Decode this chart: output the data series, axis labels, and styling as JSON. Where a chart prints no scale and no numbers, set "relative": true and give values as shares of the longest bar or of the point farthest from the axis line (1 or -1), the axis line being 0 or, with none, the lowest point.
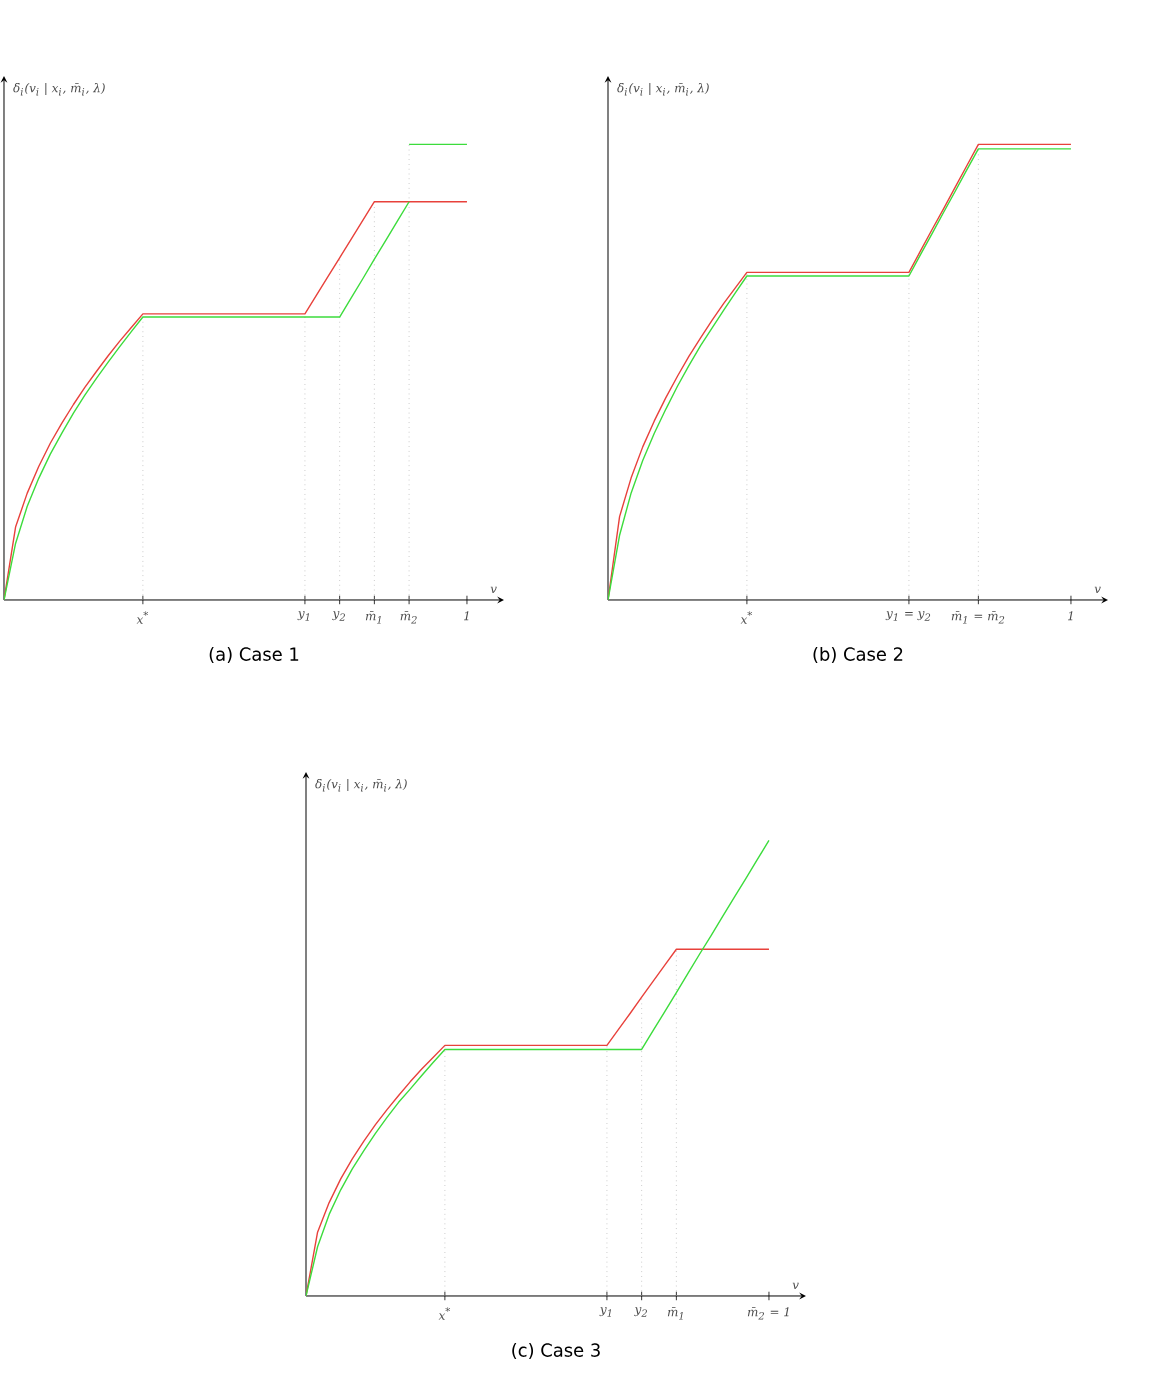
{
  "chart_data": [
    {
      "type": "line",
      "title": "(a) Case 1",
      "xlabel": "v",
      "ylabel": "δ$_{i}$(v$_{i}$ | x$_{i}$, m̄$_{i}$, λ)",
      "relative": true,
      "categories": [
        null,
        null,
        null,
        null,
        null,
        null,
        null,
        null,
        null,
        null,
        null,
        null,
        "x$^{*}$",
        null,
        null,
        null,
        null,
        null,
        null,
        null,
        null,
        null,
        null,
        null,
        null,
        null,
        "y$_{1}$",
        null,
        null,
        "y$_{2}$",
        null,
        null,
        "m̄$_{1}$",
        null,
        null,
        "m̄$_{2}$",
        null,
        null,
        null,
        null,
        "1"
      ],
      "ref_lines": [
        {
          "axis": "x",
          "value": "x$^{*}$",
          "color": "#b0b0b0",
          "line_style": "dotted"
        },
        {
          "axis": "x",
          "value": "y$_{1}$",
          "color": "#b0b0b0",
          "line_style": "dotted"
        },
        {
          "axis": "x",
          "value": "y$_{2}$",
          "color": "#b0b0b0",
          "line_style": "dotted"
        },
        {
          "axis": "x",
          "value": "m̄$_{1}$",
          "color": "#b0b0b0",
          "line_style": "dotted"
        },
        {
          "axis": "x",
          "value": "m̄$_{2}$",
          "color": "#b0b0b0",
          "line_style": "dotted"
        }
      ],
      "series": [
        {
          "color": "#e8413b",
          "values": [
            0,
            0.16,
            0.234,
            0.293,
            0.344,
            0.388,
            0.429,
            0.467,
            0.502,
            0.536,
            0.568,
            0.598,
            0.628,
            0.628,
            0.628,
            0.628,
            0.628,
            0.628,
            0.628,
            0.628,
            0.628,
            0.628,
            0.628,
            0.628,
            0.628,
            0.628,
            0.628,
            0.669,
            0.71,
            0.751,
            0.792,
            0.833,
            0.874,
            0.874,
            0.874,
            0.874,
            0.874,
            0.874,
            0.874,
            0.874,
            0.874
          ]
        },
        {
          "color": "#3cdc3c",
          "values": [
            0,
            0.124,
            0.205,
            0.267,
            0.32,
            0.366,
            0.41,
            0.45,
            0.487,
            0.522,
            0.556,
            0.589,
            0.621,
            0.621,
            0.621,
            0.621,
            0.621,
            0.621,
            0.621,
            0.621,
            0.621,
            0.621,
            0.621,
            0.621,
            0.621,
            0.621,
            0.621,
            0.621,
            0.621,
            0.621,
            0.663,
            0.705,
            0.748,
            0.79,
            0.832,
            0.874,
            null,
            null,
            null,
            null,
            null
          ]
        },
        {
          "color": "#3cdc3c",
          "values": [
            null,
            null,
            null,
            null,
            null,
            null,
            null,
            null,
            null,
            null,
            null,
            null,
            null,
            null,
            null,
            null,
            null,
            null,
            null,
            null,
            null,
            null,
            null,
            null,
            null,
            null,
            null,
            null,
            null,
            null,
            null,
            null,
            null,
            null,
            null,
            1,
            1,
            1,
            1,
            1,
            1
          ]
        }
      ]
    },
    {
      "type": "line",
      "title": "(b) Case 2",
      "xlabel": "v",
      "ylabel": "δ$_{i}$(v$_{i}$ | x$_{i}$, m̄$_{i}$, λ)",
      "relative": true,
      "categories": [
        null,
        null,
        null,
        null,
        null,
        null,
        null,
        null,
        null,
        null,
        null,
        null,
        "x$^{*}$",
        null,
        null,
        null,
        null,
        null,
        null,
        null,
        null,
        null,
        null,
        null,
        null,
        null,
        "y$_{1}$ = y$_{2}$",
        null,
        null,
        null,
        null,
        null,
        "m̄$_{1}$ = m̄$_{2}$",
        null,
        null,
        null,
        null,
        null,
        null,
        null,
        "1"
      ],
      "ref_lines": [
        {
          "axis": "x",
          "value": "x$^{*}$",
          "color": "#b0b0b0",
          "line_style": "dotted"
        },
        {
          "axis": "x",
          "value": "y$_{1}$ = y$_{2}$",
          "color": "#b0b0b0",
          "line_style": "dotted"
        },
        {
          "axis": "x",
          "value": "m̄$_{1}$ = m̄$_{2}$",
          "color": "#b0b0b0",
          "line_style": "dotted"
        }
      ],
      "series": [
        {
          "color": "#e8413b",
          "values": [
            0,
            0.183,
            0.268,
            0.336,
            0.393,
            0.444,
            0.491,
            0.535,
            0.575,
            0.614,
            0.651,
            0.685,
            0.719,
            0.719,
            0.719,
            0.719,
            0.719,
            0.719,
            0.719,
            0.719,
            0.719,
            0.719,
            0.719,
            0.719,
            0.719,
            0.719,
            0.719,
            0.766,
            0.813,
            0.859,
            0.906,
            0.953,
            1,
            1,
            1,
            1,
            1,
            1,
            1,
            1,
            1
          ]
        },
        {
          "color": "#3cdc3c",
          "values": [
            0,
            0.142,
            0.235,
            0.306,
            0.366,
            0.419,
            0.469,
            0.515,
            0.558,
            0.597,
            0.636,
            0.674,
            0.711,
            0.711,
            0.711,
            0.711,
            0.711,
            0.711,
            0.711,
            0.711,
            0.711,
            0.711,
            0.711,
            0.711,
            0.711,
            0.711,
            0.711,
            0.758,
            0.804,
            0.851,
            0.897,
            0.944,
            0.99,
            0.99,
            0.99,
            0.99,
            0.99,
            0.99,
            0.99,
            0.99,
            0.99
          ]
        }
      ]
    },
    {
      "type": "line",
      "title": "(c) Case 3",
      "xlabel": "v",
      "ylabel": "δ$_{i}$(v$_{i}$ | x$_{i}$, m̄$_{i}$, λ)",
      "relative": true,
      "categories": [
        null,
        null,
        null,
        null,
        null,
        null,
        null,
        null,
        null,
        null,
        null,
        null,
        "x$^{*}$",
        null,
        null,
        null,
        null,
        null,
        null,
        null,
        null,
        null,
        null,
        null,
        null,
        null,
        "y$_{1}$",
        null,
        null,
        "y$_{2}$",
        null,
        null,
        "m̄$_{1}$",
        null,
        null,
        null,
        null,
        null,
        null,
        null,
        "m̄$_{2}$ = 1"
      ],
      "ref_lines": [
        {
          "axis": "x",
          "value": "x$^{*}$",
          "color": "#b0b0b0",
          "line_style": "dotted"
        },
        {
          "axis": "x",
          "value": "y$_{1}$",
          "color": "#b0b0b0",
          "line_style": "dotted"
        },
        {
          "axis": "x",
          "value": "y$_{2}$",
          "color": "#b0b0b0",
          "line_style": "dotted"
        },
        {
          "axis": "x",
          "value": "m̄$_{1}$",
          "color": "#b0b0b0",
          "line_style": "dotted"
        }
      ],
      "series": [
        {
          "color": "#e8413b",
          "values": [
            0,
            0.14,
            0.205,
            0.257,
            0.301,
            0.34,
            0.376,
            0.409,
            0.44,
            0.47,
            0.498,
            0.524,
            0.55,
            0.55,
            0.55,
            0.55,
            0.55,
            0.55,
            0.55,
            0.55,
            0.55,
            0.55,
            0.55,
            0.55,
            0.55,
            0.55,
            0.55,
            0.585,
            0.62,
            0.656,
            0.691,
            0.726,
            0.761,
            0.761,
            0.761,
            0.761,
            0.761,
            0.761,
            0.761,
            0.761,
            0.761
          ]
        },
        {
          "color": "#3cdc3c",
          "values": [
            0,
            0.108,
            0.179,
            0.233,
            0.279,
            0.319,
            0.357,
            0.392,
            0.425,
            0.454,
            0.484,
            0.513,
            0.541,
            0.541,
            0.541,
            0.541,
            0.541,
            0.541,
            0.541,
            0.541,
            0.541,
            0.541,
            0.541,
            0.541,
            0.541,
            0.541,
            0.541,
            0.541,
            0.541,
            0.541,
            0.583,
            0.624,
            0.666,
            0.708,
            0.75,
            0.791,
            0.833,
            0.875,
            0.916,
            0.958,
            1
          ]
        }
      ]
    }
  ]
}
